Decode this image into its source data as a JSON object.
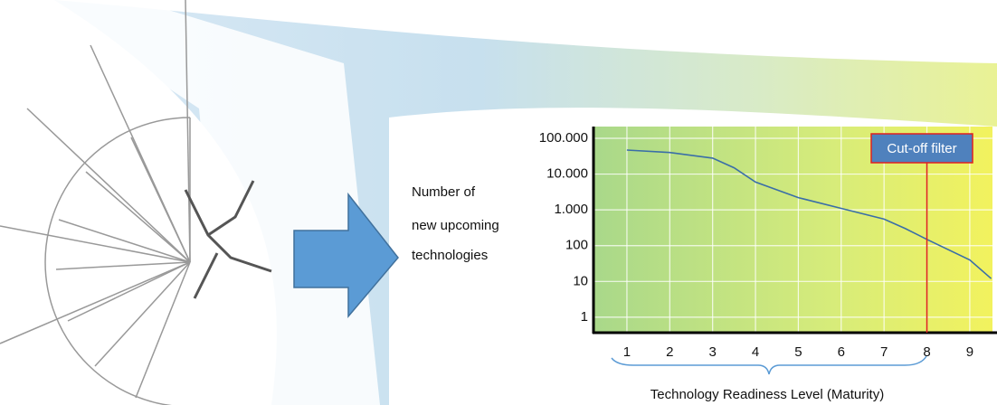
{
  "chart_data": {
    "type": "line",
    "ylabel": [
      "Number of",
      "new upcoming",
      "technologies"
    ],
    "xlabel": "Technology Readiness Level (Maturity)",
    "x": [
      1,
      2,
      3,
      3.5,
      4,
      5,
      6,
      7,
      7.5,
      8,
      9,
      9.5
    ],
    "values": [
      47000,
      40000,
      28000,
      15000,
      6000,
      2200,
      1100,
      550,
      300,
      150,
      40,
      12
    ],
    "color": "#3a6ea8",
    "xlim": [
      0.22,
      9.53
    ],
    "xticks": [
      1,
      2,
      3,
      4,
      5,
      6,
      7,
      8,
      9
    ],
    "ylim": [
      0.37,
      213000
    ],
    "yticks": [
      1,
      10,
      100,
      {
        "value": 1000,
        "label": "1.000"
      },
      {
        "value": 10000,
        "label": "10.000"
      },
      {
        "value": 100000,
        "label": "100.000"
      }
    ],
    "yscale": "log",
    "grid": true,
    "annotation": {
      "text": "Cut-off filter",
      "x": 8,
      "color": "#e02020"
    }
  }
}
